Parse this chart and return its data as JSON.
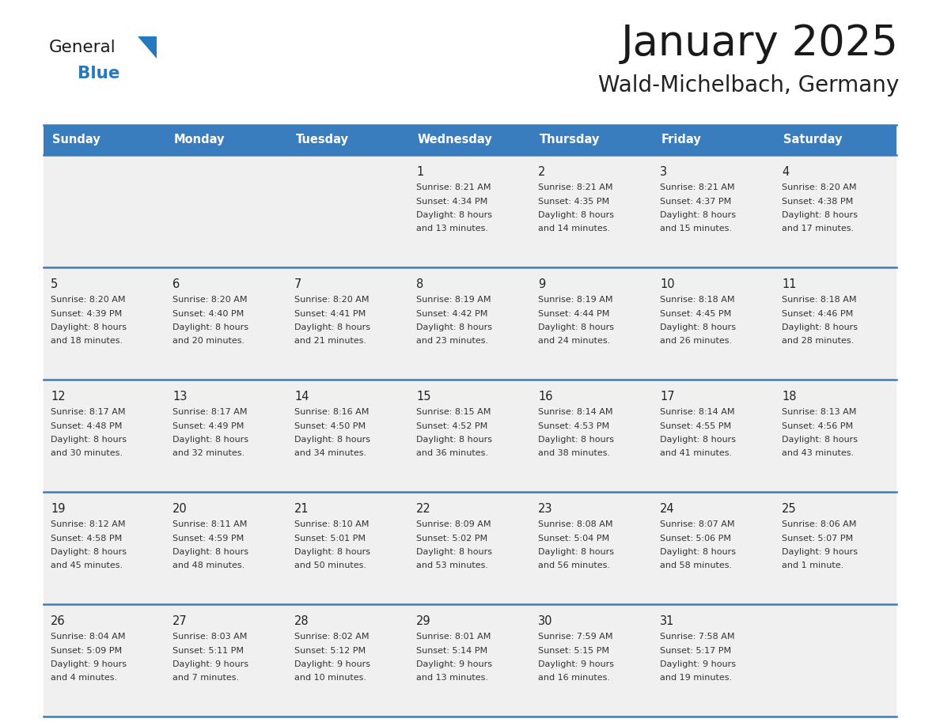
{
  "title": "January 2025",
  "subtitle": "Wald-Michelbach, Germany",
  "days_of_week": [
    "Sunday",
    "Monday",
    "Tuesday",
    "Wednesday",
    "Thursday",
    "Friday",
    "Saturday"
  ],
  "header_bg": "#3a7dbf",
  "header_text": "#ffffff",
  "row_bg_light": "#f0f0f0",
  "row_bg_white": "#ffffff",
  "cell_text": "#333333",
  "date_text": "#222222",
  "divider_color": "#3a7dbf",
  "title_color": "#1a1a1a",
  "subtitle_color": "#222222",
  "logo_general_color": "#1a1a1a",
  "logo_blue_color": "#2779be",
  "logo_triangle_color": "#2779be",
  "weeks": [
    {
      "days": [
        {
          "date": "",
          "sunrise": "",
          "sunset": "",
          "daylight": ""
        },
        {
          "date": "",
          "sunrise": "",
          "sunset": "",
          "daylight": ""
        },
        {
          "date": "",
          "sunrise": "",
          "sunset": "",
          "daylight": ""
        },
        {
          "date": "1",
          "sunrise": "8:21 AM",
          "sunset": "4:34 PM",
          "daylight": "8 hours\nand 13 minutes."
        },
        {
          "date": "2",
          "sunrise": "8:21 AM",
          "sunset": "4:35 PM",
          "daylight": "8 hours\nand 14 minutes."
        },
        {
          "date": "3",
          "sunrise": "8:21 AM",
          "sunset": "4:37 PM",
          "daylight": "8 hours\nand 15 minutes."
        },
        {
          "date": "4",
          "sunrise": "8:20 AM",
          "sunset": "4:38 PM",
          "daylight": "8 hours\nand 17 minutes."
        }
      ]
    },
    {
      "days": [
        {
          "date": "5",
          "sunrise": "8:20 AM",
          "sunset": "4:39 PM",
          "daylight": "8 hours\nand 18 minutes."
        },
        {
          "date": "6",
          "sunrise": "8:20 AM",
          "sunset": "4:40 PM",
          "daylight": "8 hours\nand 20 minutes."
        },
        {
          "date": "7",
          "sunrise": "8:20 AM",
          "sunset": "4:41 PM",
          "daylight": "8 hours\nand 21 minutes."
        },
        {
          "date": "8",
          "sunrise": "8:19 AM",
          "sunset": "4:42 PM",
          "daylight": "8 hours\nand 23 minutes."
        },
        {
          "date": "9",
          "sunrise": "8:19 AM",
          "sunset": "4:44 PM",
          "daylight": "8 hours\nand 24 minutes."
        },
        {
          "date": "10",
          "sunrise": "8:18 AM",
          "sunset": "4:45 PM",
          "daylight": "8 hours\nand 26 minutes."
        },
        {
          "date": "11",
          "sunrise": "8:18 AM",
          "sunset": "4:46 PM",
          "daylight": "8 hours\nand 28 minutes."
        }
      ]
    },
    {
      "days": [
        {
          "date": "12",
          "sunrise": "8:17 AM",
          "sunset": "4:48 PM",
          "daylight": "8 hours\nand 30 minutes."
        },
        {
          "date": "13",
          "sunrise": "8:17 AM",
          "sunset": "4:49 PM",
          "daylight": "8 hours\nand 32 minutes."
        },
        {
          "date": "14",
          "sunrise": "8:16 AM",
          "sunset": "4:50 PM",
          "daylight": "8 hours\nand 34 minutes."
        },
        {
          "date": "15",
          "sunrise": "8:15 AM",
          "sunset": "4:52 PM",
          "daylight": "8 hours\nand 36 minutes."
        },
        {
          "date": "16",
          "sunrise": "8:14 AM",
          "sunset": "4:53 PM",
          "daylight": "8 hours\nand 38 minutes."
        },
        {
          "date": "17",
          "sunrise": "8:14 AM",
          "sunset": "4:55 PM",
          "daylight": "8 hours\nand 41 minutes."
        },
        {
          "date": "18",
          "sunrise": "8:13 AM",
          "sunset": "4:56 PM",
          "daylight": "8 hours\nand 43 minutes."
        }
      ]
    },
    {
      "days": [
        {
          "date": "19",
          "sunrise": "8:12 AM",
          "sunset": "4:58 PM",
          "daylight": "8 hours\nand 45 minutes."
        },
        {
          "date": "20",
          "sunrise": "8:11 AM",
          "sunset": "4:59 PM",
          "daylight": "8 hours\nand 48 minutes."
        },
        {
          "date": "21",
          "sunrise": "8:10 AM",
          "sunset": "5:01 PM",
          "daylight": "8 hours\nand 50 minutes."
        },
        {
          "date": "22",
          "sunrise": "8:09 AM",
          "sunset": "5:02 PM",
          "daylight": "8 hours\nand 53 minutes."
        },
        {
          "date": "23",
          "sunrise": "8:08 AM",
          "sunset": "5:04 PM",
          "daylight": "8 hours\nand 56 minutes."
        },
        {
          "date": "24",
          "sunrise": "8:07 AM",
          "sunset": "5:06 PM",
          "daylight": "8 hours\nand 58 minutes."
        },
        {
          "date": "25",
          "sunrise": "8:06 AM",
          "sunset": "5:07 PM",
          "daylight": "9 hours\nand 1 minute."
        }
      ]
    },
    {
      "days": [
        {
          "date": "26",
          "sunrise": "8:04 AM",
          "sunset": "5:09 PM",
          "daylight": "9 hours\nand 4 minutes."
        },
        {
          "date": "27",
          "sunrise": "8:03 AM",
          "sunset": "5:11 PM",
          "daylight": "9 hours\nand 7 minutes."
        },
        {
          "date": "28",
          "sunrise": "8:02 AM",
          "sunset": "5:12 PM",
          "daylight": "9 hours\nand 10 minutes."
        },
        {
          "date": "29",
          "sunrise": "8:01 AM",
          "sunset": "5:14 PM",
          "daylight": "9 hours\nand 13 minutes."
        },
        {
          "date": "30",
          "sunrise": "7:59 AM",
          "sunset": "5:15 PM",
          "daylight": "9 hours\nand 16 minutes."
        },
        {
          "date": "31",
          "sunrise": "7:58 AM",
          "sunset": "5:17 PM",
          "daylight": "9 hours\nand 19 minutes."
        },
        {
          "date": "",
          "sunrise": "",
          "sunset": "",
          "daylight": ""
        }
      ]
    }
  ]
}
